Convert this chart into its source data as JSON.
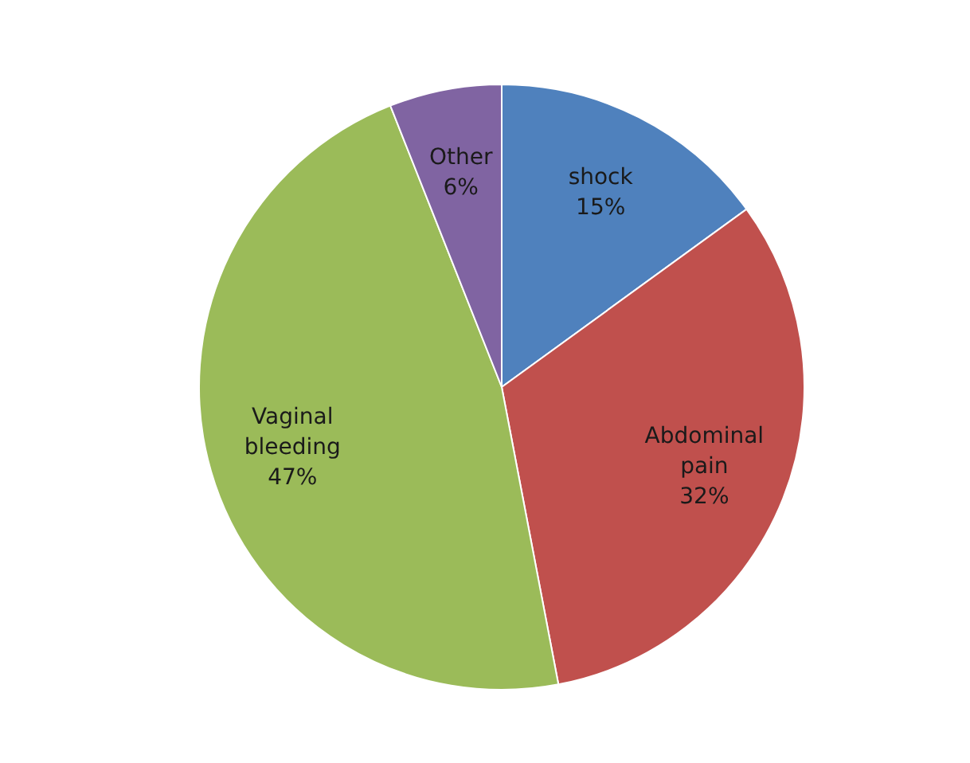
{
  "chart_data": {
    "type": "pie",
    "categories": [
      "shock",
      "Abdominal pain",
      "Vaginal bleeding",
      "Other"
    ],
    "values": [
      15,
      32,
      47,
      6
    ],
    "colors": [
      "#4f81bd",
      "#c0504d",
      "#9bbb59",
      "#8064a2"
    ],
    "value_labels": [
      "15%",
      "32%",
      "47%",
      "6%"
    ],
    "legend": false
  }
}
